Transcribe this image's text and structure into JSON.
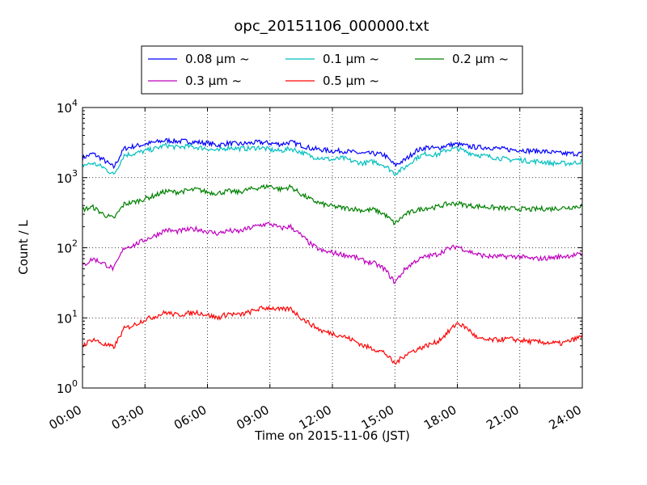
{
  "chart_data": {
    "type": "line",
    "title": "opc_20151106_000000.txt",
    "xlabel": "Time on 2015-11-06 (JST)",
    "ylabel": "Count / L",
    "xlim": [
      "00:00",
      "24:00"
    ],
    "ylim": [
      1,
      10000
    ],
    "yscale": "log",
    "grid": true,
    "legend_position": "top-center, above plot, 3 columns",
    "x_ticks": [
      "00:00",
      "03:00",
      "06:00",
      "09:00",
      "12:00",
      "15:00",
      "18:00",
      "21:00",
      "24:00"
    ],
    "y_ticks": [
      {
        "base": "10",
        "exp": "0"
      },
      {
        "base": "10",
        "exp": "1"
      },
      {
        "base": "10",
        "exp": "2"
      },
      {
        "base": "10",
        "exp": "3"
      },
      {
        "base": "10",
        "exp": "4"
      }
    ],
    "x_hours": [
      0,
      0.5,
      1,
      1.5,
      2,
      2.5,
      3,
      3.5,
      4,
      4.5,
      5,
      5.5,
      6,
      6.5,
      7,
      7.5,
      8,
      8.5,
      9,
      9.5,
      10,
      10.5,
      11,
      11.5,
      12,
      12.5,
      13,
      13.5,
      14,
      14.5,
      15,
      15.5,
      16,
      16.5,
      17,
      17.5,
      18,
      18.5,
      19,
      19.5,
      20,
      20.5,
      21,
      21.5,
      22,
      22.5,
      23,
      23.5,
      24
    ],
    "series": [
      {
        "name": "0.08 μm ~",
        "color": "#0000ff",
        "values": [
          1900,
          2200,
          1800,
          1400,
          2600,
          2800,
          3000,
          3200,
          3400,
          3300,
          3300,
          3200,
          3100,
          2900,
          3100,
          3000,
          3100,
          3200,
          3100,
          3000,
          3200,
          2900,
          2600,
          2500,
          2400,
          2400,
          2300,
          2200,
          2200,
          2100,
          1500,
          1800,
          2400,
          2700,
          2600,
          2900,
          3000,
          2800,
          2700,
          2700,
          2600,
          2500,
          2500,
          2400,
          2400,
          2300,
          2200,
          2200,
          2200
        ]
      },
      {
        "name": "0.1 μm ~",
        "color": "#00bfbf",
        "values": [
          1500,
          1600,
          1400,
          1100,
          2100,
          2200,
          2400,
          2600,
          2900,
          2700,
          2800,
          2700,
          2600,
          2400,
          2700,
          2600,
          2600,
          2700,
          2500,
          2400,
          2600,
          2300,
          2000,
          1900,
          1800,
          1900,
          1700,
          1600,
          1700,
          1500,
          1150,
          1400,
          1900,
          2200,
          2100,
          2500,
          2600,
          2300,
          2100,
          2000,
          1900,
          1800,
          1800,
          1700,
          1700,
          1600,
          1600,
          1600,
          1700
        ]
      },
      {
        "name": "0.2 μm ~",
        "color": "#008000",
        "values": [
          350,
          380,
          300,
          260,
          420,
          450,
          500,
          560,
          640,
          620,
          650,
          680,
          620,
          600,
          640,
          620,
          680,
          720,
          760,
          680,
          740,
          580,
          480,
          420,
          390,
          370,
          360,
          340,
          350,
          300,
          220,
          300,
          340,
          370,
          380,
          420,
          430,
          400,
          390,
          380,
          370,
          360,
          360,
          350,
          360,
          360,
          370,
          380,
          400
        ]
      },
      {
        "name": "0.3 μm ~",
        "color": "#bf00bf",
        "values": [
          55,
          70,
          60,
          50,
          100,
          110,
          130,
          150,
          180,
          170,
          180,
          185,
          170,
          160,
          175,
          170,
          190,
          210,
          220,
          190,
          200,
          150,
          110,
          90,
          85,
          80,
          75,
          65,
          60,
          50,
          32,
          50,
          65,
          75,
          80,
          95,
          105,
          90,
          80,
          75,
          75,
          75,
          75,
          70,
          70,
          72,
          75,
          78,
          80
        ]
      },
      {
        "name": "0.5 μm ~",
        "color": "#ff0000",
        "values": [
          4,
          5,
          4.2,
          3.8,
          7,
          8,
          9.5,
          10.5,
          12,
          11,
          11.5,
          12,
          11,
          10,
          11.5,
          11,
          12,
          13.5,
          14,
          13,
          13.5,
          10,
          8,
          6.5,
          6,
          5.5,
          4.8,
          4,
          3.6,
          3.2,
          2.2,
          3,
          3.5,
          4,
          4.5,
          6,
          8.5,
          7,
          5,
          4.8,
          4.9,
          5,
          4.8,
          4.6,
          4.5,
          4.4,
          4.3,
          4.8,
          5.5
        ]
      }
    ]
  }
}
